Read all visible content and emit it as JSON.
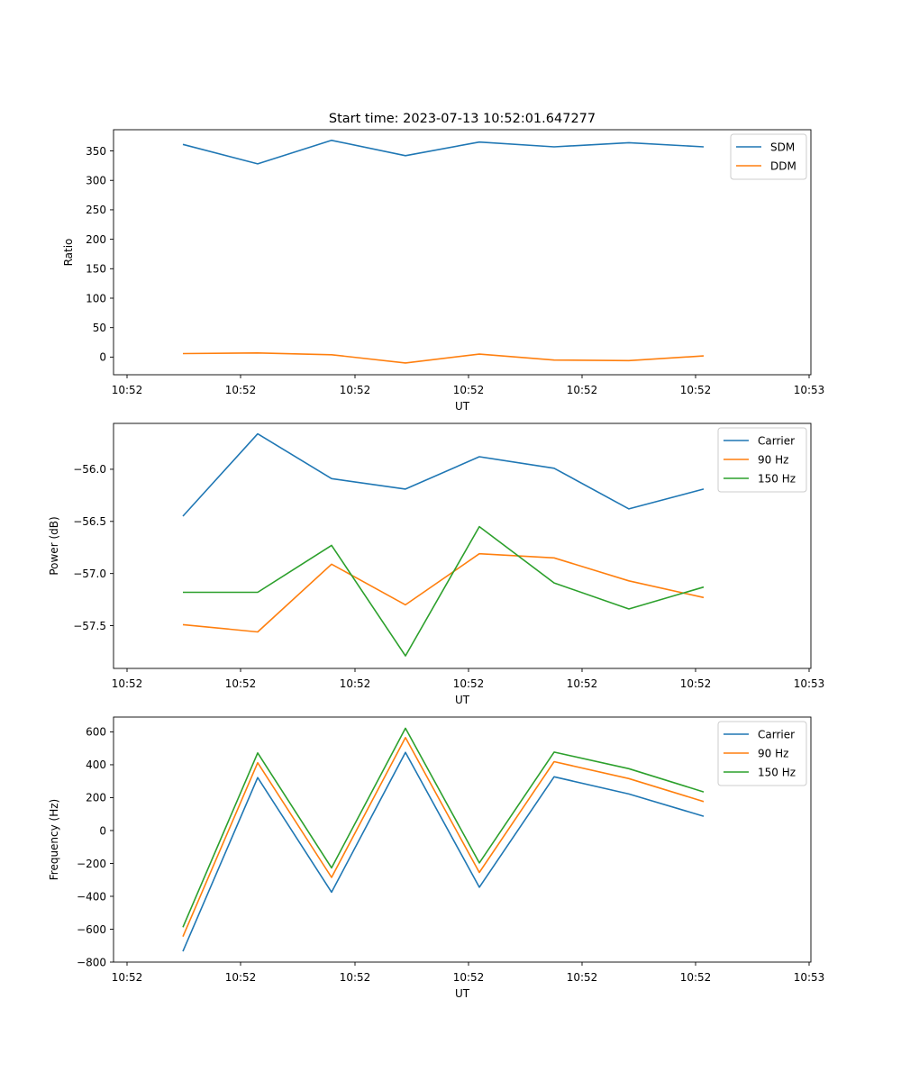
{
  "figure_title": "Start time: 2023-07-13 10:52:01.647277",
  "colors": {
    "blue": "#1f77b4",
    "orange": "#ff7f0e",
    "green": "#2ca02c"
  },
  "chart_data": [
    {
      "type": "line",
      "title": "Start time: 2023-07-13 10:52:01.647277",
      "xlabel": "UT",
      "ylabel": "Ratio",
      "x_ticks": [
        "10:52",
        "10:52",
        "10:52",
        "10:52",
        "10:52",
        "10:52",
        "10:53"
      ],
      "y_ticks": [
        0,
        50,
        100,
        150,
        200,
        250,
        300,
        350
      ],
      "ylim": [
        -30,
        386
      ],
      "legend_position": "top-right",
      "series": [
        {
          "name": "SDM",
          "color": "#1f77b4",
          "values": [
            361,
            328,
            368,
            342,
            365,
            357,
            364,
            357
          ]
        },
        {
          "name": "DDM",
          "color": "#ff7f0e",
          "values": [
            6,
            7,
            4,
            -10,
            5,
            -5,
            -6,
            2
          ]
        }
      ]
    },
    {
      "type": "line",
      "title": "",
      "xlabel": "UT",
      "ylabel": "Power (dB)",
      "x_ticks": [
        "10:52",
        "10:52",
        "10:52",
        "10:52",
        "10:52",
        "10:52",
        "10:53"
      ],
      "y_ticks": [
        -56.0,
        -56.5,
        -57.0,
        -57.5
      ],
      "y_tick_labels": [
        "−56.0",
        "−56.5",
        "−57.0",
        "−57.5"
      ],
      "ylim": [
        -57.91,
        -55.56
      ],
      "legend_position": "top-right",
      "series": [
        {
          "name": "Carrier",
          "color": "#1f77b4",
          "values": [
            -56.45,
            -55.66,
            -56.09,
            -56.19,
            -55.88,
            -55.99,
            -56.38,
            -56.19
          ]
        },
        {
          "name": "90 Hz",
          "color": "#ff7f0e",
          "values": [
            -57.49,
            -57.56,
            -56.91,
            -57.3,
            -56.81,
            -56.85,
            -57.07,
            -57.23
          ]
        },
        {
          "name": "150 Hz",
          "color": "#2ca02c",
          "values": [
            -57.18,
            -57.18,
            -56.73,
            -57.79,
            -56.55,
            -57.09,
            -57.34,
            -57.13
          ]
        }
      ]
    },
    {
      "type": "line",
      "title": "",
      "xlabel": "UT",
      "ylabel": "Frequency (Hz)",
      "x_ticks": [
        "10:52",
        "10:52",
        "10:52",
        "10:52",
        "10:52",
        "10:52",
        "10:53"
      ],
      "y_ticks": [
        600,
        400,
        200,
        0,
        -200,
        -400,
        -600,
        -800
      ],
      "y_tick_labels": [
        "600",
        "400",
        "200",
        "0",
        "−200",
        "−400",
        "−600",
        "−800"
      ],
      "ylim": [
        -800,
        690
      ],
      "legend_position": "top-right",
      "series": [
        {
          "name": "Carrier",
          "color": "#1f77b4",
          "values": [
            -735,
            322,
            -375,
            475,
            -345,
            327,
            222,
            87
          ]
        },
        {
          "name": "90 Hz",
          "color": "#ff7f0e",
          "values": [
            -645,
            412,
            -285,
            565,
            -255,
            419,
            316,
            176
          ]
        },
        {
          "name": "150 Hz",
          "color": "#2ca02c",
          "values": [
            -588,
            472,
            -227,
            622,
            -197,
            477,
            376,
            235
          ]
        }
      ]
    }
  ]
}
